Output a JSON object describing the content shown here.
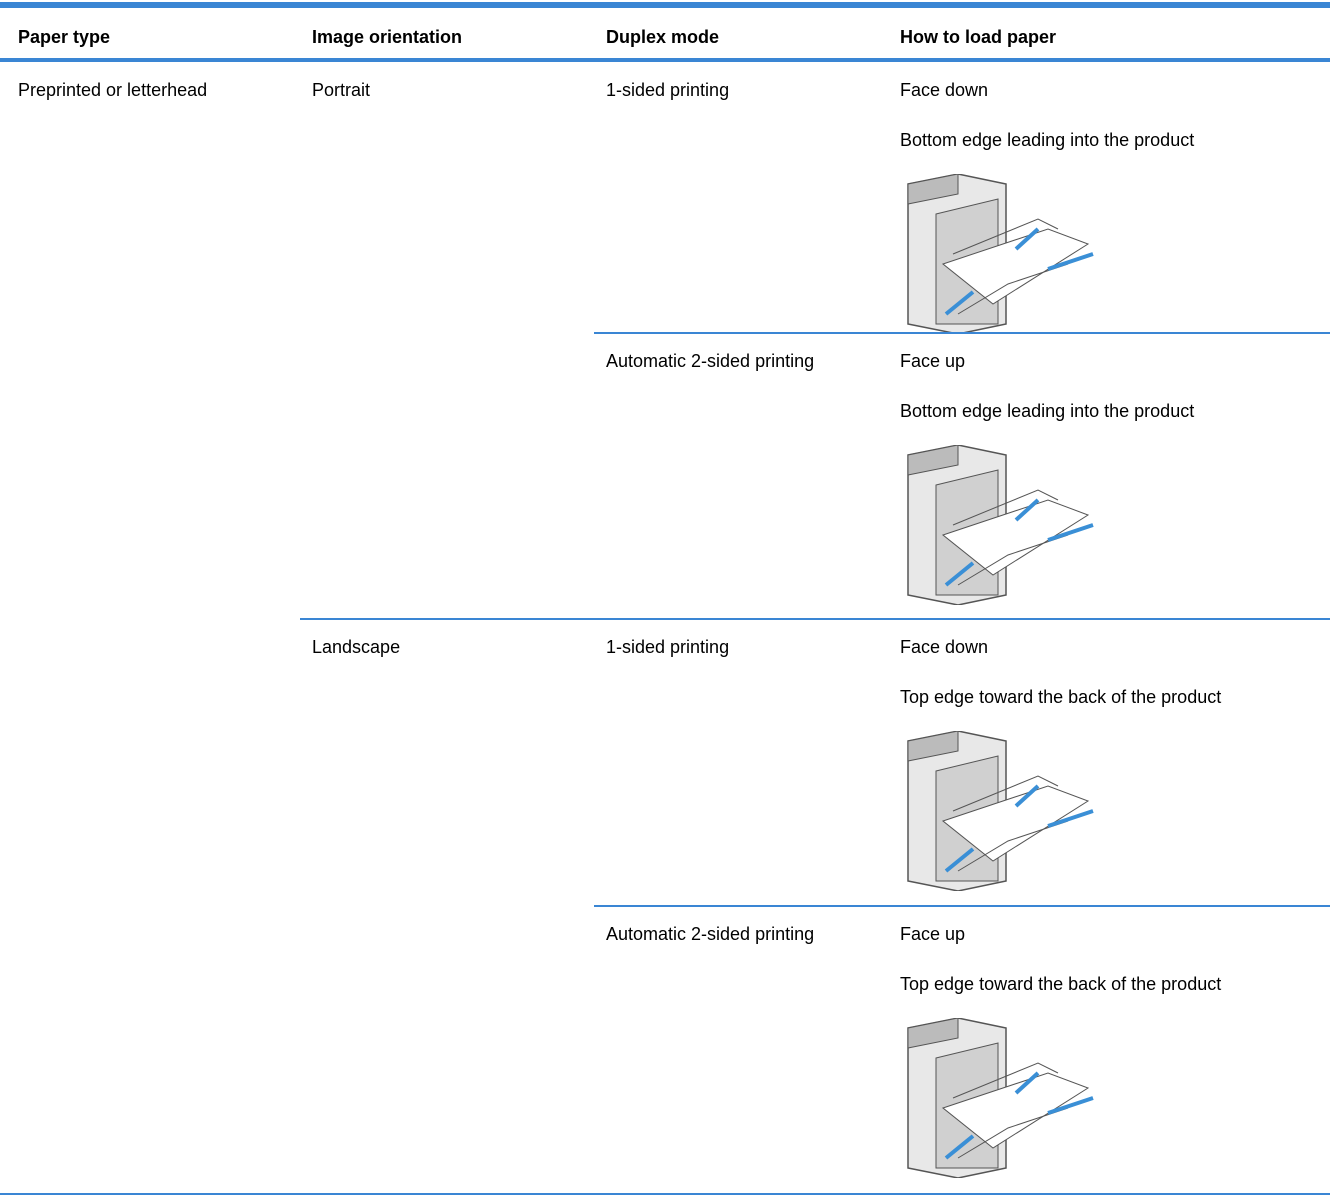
{
  "table": {
    "header": [
      "Paper type",
      "Image orientation",
      "Duplex mode",
      "How to load paper"
    ],
    "paper_type": "Preprinted or letterhead",
    "orientations": [
      {
        "label": "Portrait",
        "modes": [
          {
            "duplex": "1-sided printing",
            "face": "Face down",
            "edge": "Bottom edge leading into the product"
          },
          {
            "duplex": "Automatic 2-sided printing",
            "face": "Face up",
            "edge": "Bottom edge leading into the product"
          }
        ]
      },
      {
        "label": "Landscape",
        "modes": [
          {
            "duplex": "1-sided printing",
            "face": "Face down",
            "edge": "Top edge toward the back of the product"
          },
          {
            "duplex": "Automatic 2-sided printing",
            "face": "Face up",
            "edge": "Top edge toward the back of the product"
          }
        ]
      }
    ]
  }
}
